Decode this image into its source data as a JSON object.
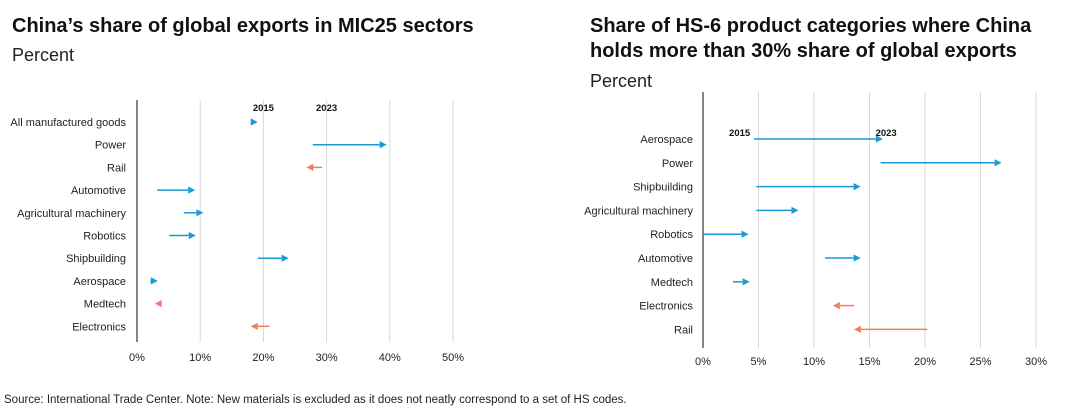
{
  "left_panel": {
    "title": "China’s share of global exports in MIC25 sectors",
    "subtitle": "Percent"
  },
  "right_panel": {
    "title_line1": "Share of HS-6 product categories where China",
    "title_line2": "holds more than 30% share of global exports",
    "subtitle": "Percent"
  },
  "footer": "Source: International Trade Center. Note: New materials is excluded as it does not neatly correspond to a set of HS codes.",
  "colors": {
    "increase": "#1a9ad6",
    "decrease": "#f07f5f",
    "grid": "#d9d9d9",
    "axis": "#333333"
  },
  "chart_data": [
    {
      "type": "arrow",
      "title": "China’s share of global exports in MIC25 sectors",
      "subtitle": "Percent",
      "xlim": [
        0,
        50
      ],
      "x_ticks": [
        0,
        10,
        20,
        30,
        40,
        50
      ],
      "tick_suffix": "%",
      "grid": true,
      "annotations": [
        {
          "text": "2015",
          "x": 20
        },
        {
          "text": "2023",
          "x": 30
        }
      ],
      "categories": [
        "All manufactured goods",
        "Power",
        "Rail",
        "Automotive",
        "Agricultural machinery",
        "Robotics",
        "Shipbuilding",
        "Aerospace",
        "Medtech",
        "Electronics"
      ],
      "start_2015": [
        18.2,
        27.8,
        29.3,
        3.2,
        7.4,
        5.1,
        19.1,
        2.1,
        3.6,
        21.0
      ],
      "end_2023": [
        19.1,
        39.5,
        26.8,
        9.2,
        10.5,
        9.3,
        24.0,
        3.3,
        2.8,
        18.0
      ]
    },
    {
      "type": "arrow",
      "title": "Share of HS-6 product categories where China holds more than 30% share of global exports",
      "subtitle": "Percent",
      "xlim": [
        0,
        30
      ],
      "x_ticks": [
        0,
        5,
        10,
        15,
        20,
        25,
        30
      ],
      "tick_suffix": "%",
      "grid": true,
      "annotations": [
        {
          "text": "2015",
          "x": 3.3
        },
        {
          "text": "2023",
          "x": 16.5
        }
      ],
      "categories": [
        "Aerospace",
        "Power",
        "Shipbuilding",
        "Agricultural machinery",
        "Robotics",
        "Automotive",
        "Medtech",
        "Electronics",
        "Rail"
      ],
      "start_2015": [
        4.6,
        16.0,
        4.8,
        4.8,
        0.0,
        11.0,
        2.7,
        13.6,
        20.2
      ],
      "end_2023": [
        16.2,
        26.9,
        14.2,
        8.6,
        4.1,
        14.2,
        4.2,
        11.7,
        13.6
      ]
    }
  ]
}
